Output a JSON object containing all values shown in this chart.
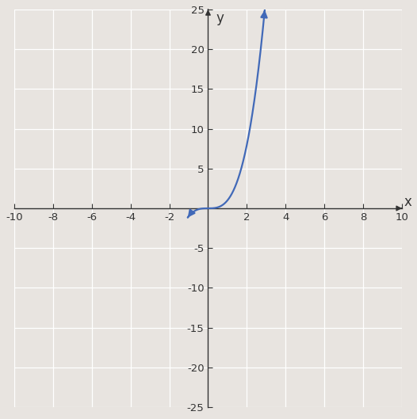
{
  "title": "",
  "xlabel": "x",
  "ylabel": "y",
  "xlim": [
    -10,
    10
  ],
  "ylim": [
    -25,
    25
  ],
  "xticks": [
    -10,
    -8,
    -6,
    -4,
    -2,
    2,
    4,
    6,
    8,
    10
  ],
  "yticks": [
    -25,
    -20,
    -15,
    -10,
    -5,
    5,
    10,
    15,
    20,
    25
  ],
  "curve_color": "#4169B8",
  "curve_linewidth": 1.6,
  "background_color": "#e8e4e0",
  "grid_color": "#ffffff",
  "axis_color": "#333333",
  "tick_fontsize": 9.5,
  "label_fontsize": 12,
  "x_curve_start": -1.05,
  "x_curve_end": 2.93,
  "func_shift": 0,
  "func_scale": 1
}
